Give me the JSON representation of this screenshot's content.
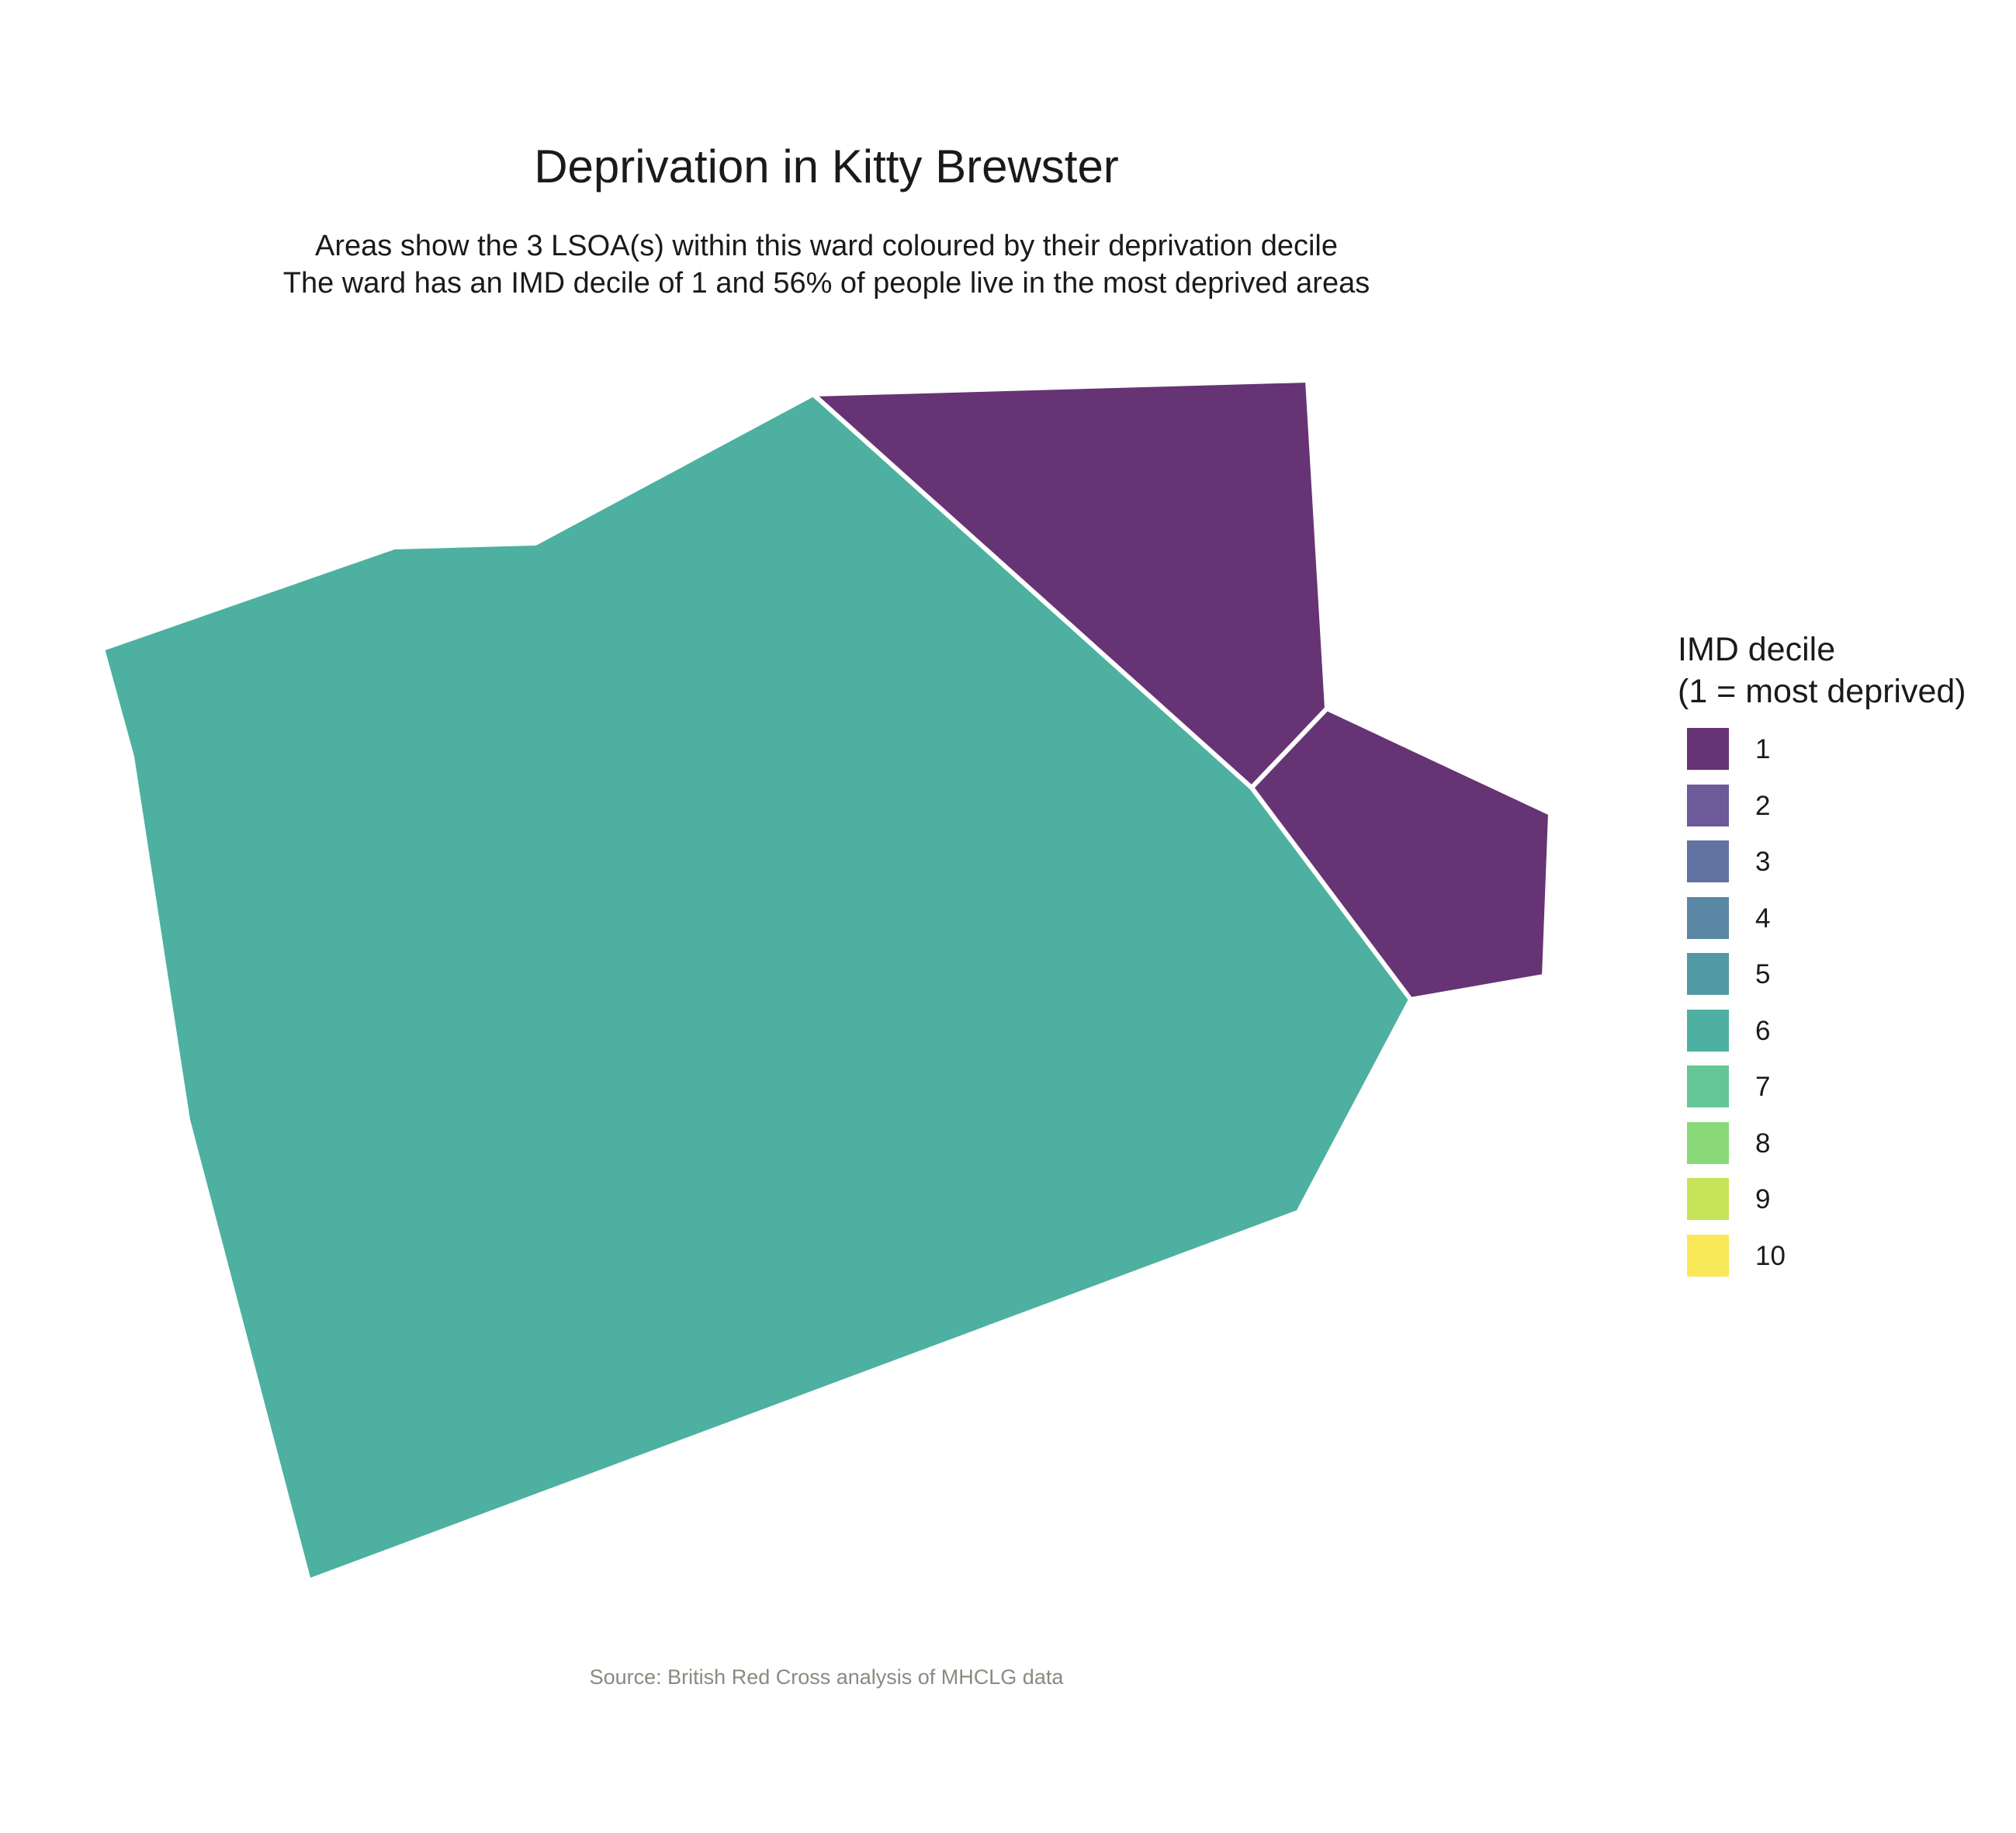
{
  "title": "Deprivation in Kitty Brewster",
  "subtitle": {
    "line1": "Areas show the 3 LSOA(s) within this ward coloured by their deprivation decile",
    "line2": "The ward has an IMD decile of 1 and 56% of people live in the most deprived areas"
  },
  "map": {
    "areas": [
      {
        "name": "large-lsoa",
        "decile": 6
      },
      {
        "name": "north-east-lsoa",
        "decile": 1
      },
      {
        "name": "east-lsoa",
        "decile": 1
      }
    ],
    "border_color": "#ffffff"
  },
  "legend": {
    "title_line1": "IMD decile",
    "title_line2": "(1 = most deprived)",
    "items": [
      {
        "label": "1",
        "color": "#663474"
      },
      {
        "label": "2",
        "color": "#6d5a98"
      },
      {
        "label": "3",
        "color": "#6273a3"
      },
      {
        "label": "4",
        "color": "#5a87a3"
      },
      {
        "label": "5",
        "color": "#5299a3"
      },
      {
        "label": "6",
        "color": "#4db0a0"
      },
      {
        "label": "7",
        "color": "#62c696"
      },
      {
        "label": "8",
        "color": "#8ad978"
      },
      {
        "label": "9",
        "color": "#c6e45a"
      },
      {
        "label": "10",
        "color": "#f9e857"
      }
    ]
  },
  "caption": "Source: British Red Cross analysis of MHCLG data"
}
